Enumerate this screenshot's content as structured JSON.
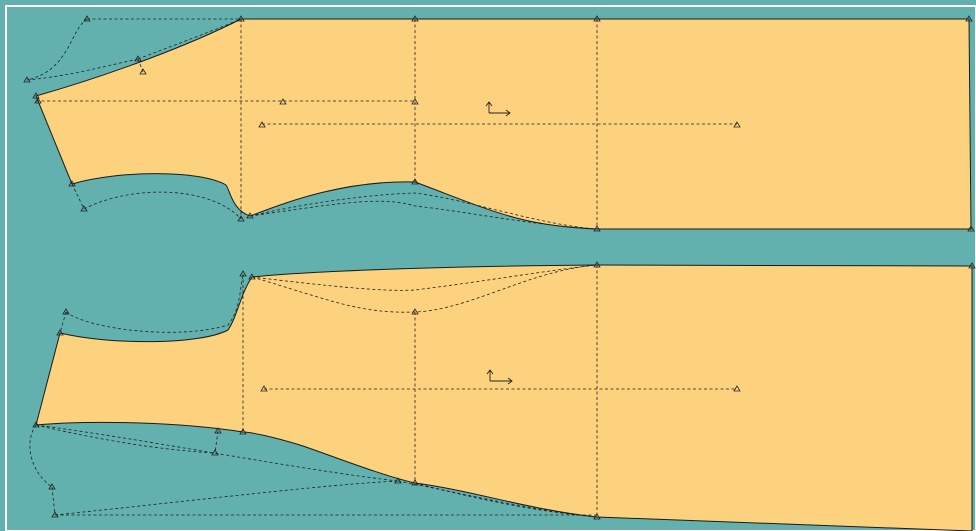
{
  "app": {
    "view": "pattern-layout",
    "background_color": "#62b1ae",
    "piece_fill_color": "#fdd27f",
    "outline_color": "#1a1a1a"
  },
  "pieces": [
    {
      "name": "upper-pattern-piece",
      "grainline_icon": "grainline-arrow-icon"
    },
    {
      "name": "lower-pattern-piece",
      "grainline_icon": "grainline-arrow-icon"
    }
  ],
  "markers": {
    "shape": "triangle",
    "icon": "construction-point-icon"
  }
}
